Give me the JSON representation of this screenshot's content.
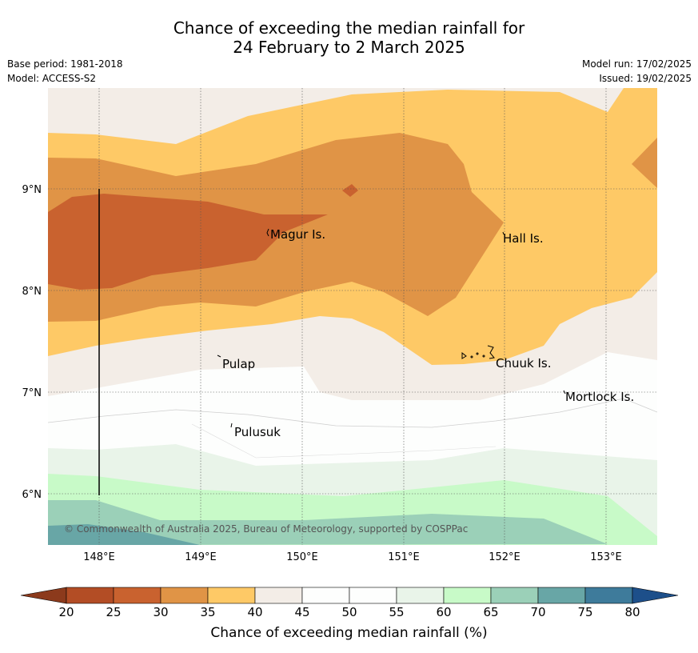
{
  "title": {
    "line1": "Chance of exceeding the median rainfall for",
    "line2": "24 February to 2 March 2025"
  },
  "meta": {
    "base_period": "Base period: 1981-2018",
    "model": "Model: ACCESS-S2",
    "model_run": "Model run: 17/02/2025",
    "issued": "Issued: 19/02/2025"
  },
  "map": {
    "lon_labels": [
      "148°E",
      "149°E",
      "150°E",
      "151°E",
      "152°E",
      "153°E"
    ],
    "lat_labels": [
      "9°N",
      "8°N",
      "7°N",
      "6°N"
    ],
    "places": [
      "Magur Is.",
      "Hall Is.",
      "Pulap",
      "Chuuk Is.",
      "Mortlock Is.",
      "Pulusuk"
    ],
    "copyright": "© Commonwealth of Australia 2025, Bureau of Meteorology, supported by COSPPac"
  },
  "colorbar": {
    "label": "Chance of exceeding median rainfall (%)",
    "ticks": [
      "20",
      "25",
      "30",
      "35",
      "40",
      "45",
      "50",
      "55",
      "60",
      "65",
      "70",
      "75",
      "80"
    ],
    "colors": [
      "#b34d25",
      "#c9622f",
      "#e09446",
      "#fec966",
      "#f3ede7",
      "#fdfefd",
      "#fdfefd",
      "#e9f4e9",
      "#c8fac8",
      "#9bd0b8",
      "#68a6a6",
      "#3e7b9b"
    ],
    "under_color": "#8c3a1c",
    "over_color": "#1d4f8a"
  }
}
